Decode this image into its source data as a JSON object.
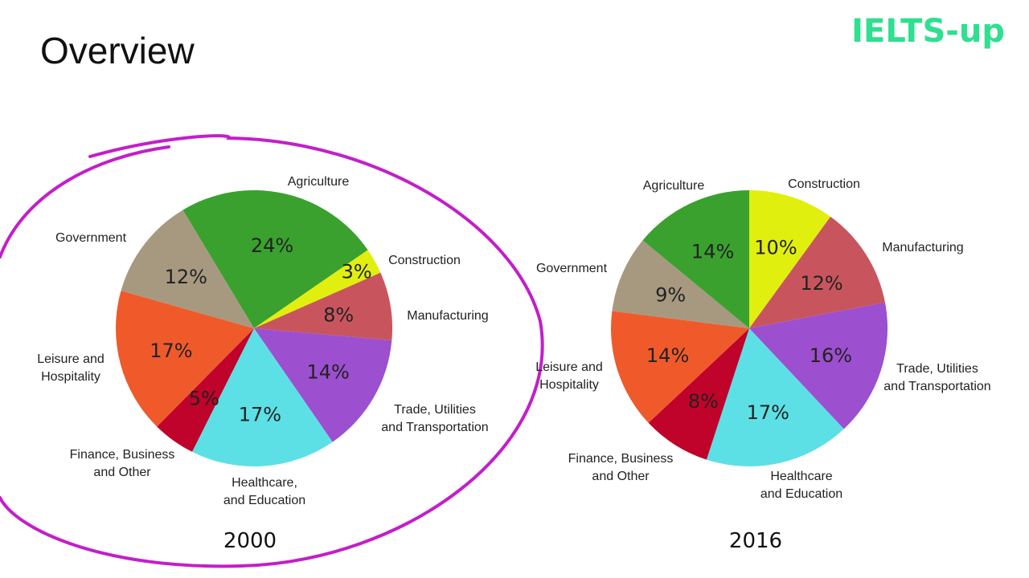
{
  "header": {
    "title": "Overview",
    "brand": "IELTS-up"
  },
  "annotation": {
    "color": "#c21fc9",
    "shape": "hand-drawn ellipse around 2000 chart"
  },
  "chart_data": [
    {
      "type": "pie",
      "title": "2000",
      "unit": "%",
      "slices": [
        {
          "name": "Agriculture",
          "value": 24,
          "color": "#3aa12f"
        },
        {
          "name": "Construction",
          "value": 3,
          "color": "#e1ef0f"
        },
        {
          "name": "Manufacturing",
          "value": 8,
          "color": "#c8555e"
        },
        {
          "name": "Trade, Utilities and Transportation",
          "value": 14,
          "color": "#9c4fcf"
        },
        {
          "name": "Healthcare, and Education",
          "value": 17,
          "color": "#5ce0e6"
        },
        {
          "name": "Finance, Business and Other",
          "value": 5,
          "color": "#c0032a"
        },
        {
          "name": "Leisure and Hospitality",
          "value": 17,
          "color": "#f05a2a"
        },
        {
          "name": "Government",
          "value": 12,
          "color": "#a69980"
        }
      ]
    },
    {
      "type": "pie",
      "title": "2016",
      "unit": "%",
      "slices": [
        {
          "name": "Construction",
          "value": 10,
          "color": "#e1ef0f"
        },
        {
          "name": "Manufacturing",
          "value": 12,
          "color": "#c8555e"
        },
        {
          "name": "Trade, Utilities and Transportation",
          "value": 16,
          "color": "#9c4fcf"
        },
        {
          "name": "Healthcare and Education",
          "value": 17,
          "color": "#5ce0e6"
        },
        {
          "name": "Finance, Business and Other",
          "value": 8,
          "color": "#c0032a"
        },
        {
          "name": "Leisure and Hospitality",
          "value": 14,
          "color": "#f05a2a"
        },
        {
          "name": "Government",
          "value": 9,
          "color": "#a69980"
        },
        {
          "name": "Agriculture",
          "value": 14,
          "color": "#3aa12f"
        }
      ]
    }
  ]
}
